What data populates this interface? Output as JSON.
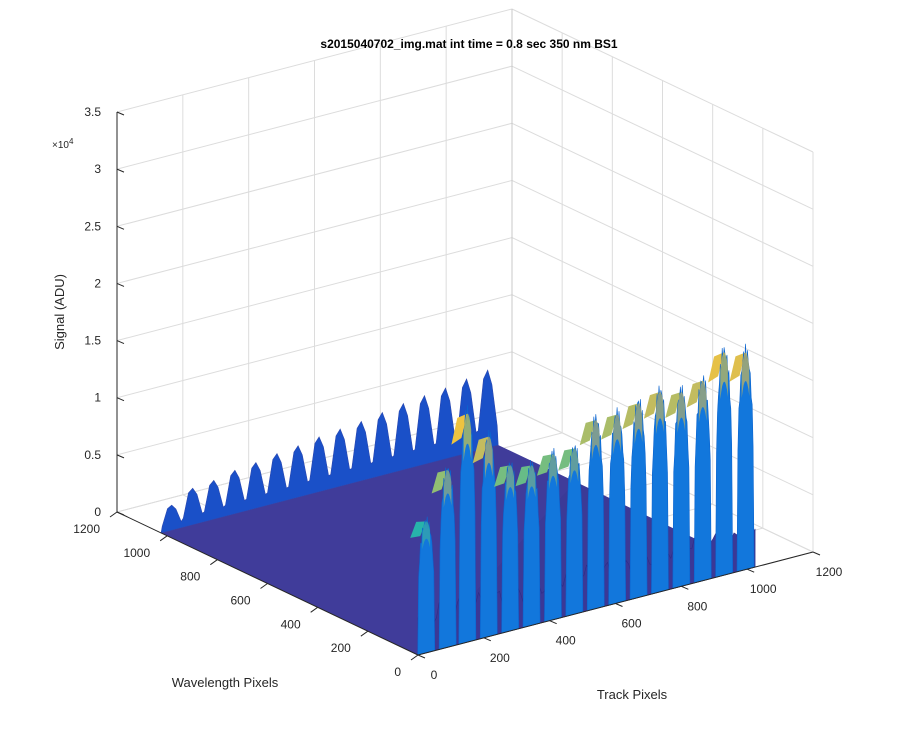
{
  "chart_data": {
    "type": "surface",
    "title": "s2015040702_img.mat int time = 0.8 sec  350 nm BS1",
    "xlabel": "Track Pixels",
    "ylabel": "Wavelength Pixels",
    "zlabel": "Signal (ADU)",
    "z_multiplier": "×10",
    "z_multiplier_exp": "4",
    "xlim": [
      0,
      1200
    ],
    "ylim": [
      0,
      1200
    ],
    "zlim": [
      0,
      3.5
    ],
    "x_ticks": [
      "0",
      "200",
      "400",
      "600",
      "800",
      "1000",
      "1200"
    ],
    "y_ticks": [
      "0",
      "200",
      "400",
      "600",
      "800",
      "1000",
      "1200"
    ],
    "z_ticks": [
      "0",
      "0.5",
      "1",
      "1.5",
      "2",
      "2.5",
      "3",
      "3.5"
    ],
    "grid": true,
    "colormap": [
      "#352a87",
      "#0f5cdd",
      "#1481d6",
      "#06a4ca",
      "#2eb7a4",
      "#87bf77",
      "#d1bb59",
      "#fec832",
      "#f9fb0e"
    ],
    "data_extent": {
      "track_pixels": [
        0,
        1024
      ],
      "wavelength_pixels": [
        0,
        1024
      ]
    },
    "track_peaks": [
      {
        "track": 25,
        "height": 1.15
      },
      {
        "track": 90,
        "height": 1.55
      },
      {
        "track": 150,
        "height": 2.0
      },
      {
        "track": 215,
        "height": 1.75
      },
      {
        "track": 280,
        "height": 1.45
      },
      {
        "track": 345,
        "height": 1.4
      },
      {
        "track": 410,
        "height": 1.45
      },
      {
        "track": 475,
        "height": 1.45
      },
      {
        "track": 540,
        "height": 1.65
      },
      {
        "track": 605,
        "height": 1.65
      },
      {
        "track": 670,
        "height": 1.7
      },
      {
        "track": 735,
        "height": 1.75
      },
      {
        "track": 800,
        "height": 1.7
      },
      {
        "track": 865,
        "height": 1.75
      },
      {
        "track": 930,
        "height": 1.95
      },
      {
        "track": 995,
        "height": 1.9
      }
    ],
    "far_wall_ridge_heights": [
      0.22,
      0.32,
      0.34,
      0.38,
      0.4,
      0.43,
      0.45,
      0.48,
      0.5,
      0.52,
      0.55,
      0.58,
      0.6,
      0.62,
      0.65,
      0.68
    ]
  }
}
